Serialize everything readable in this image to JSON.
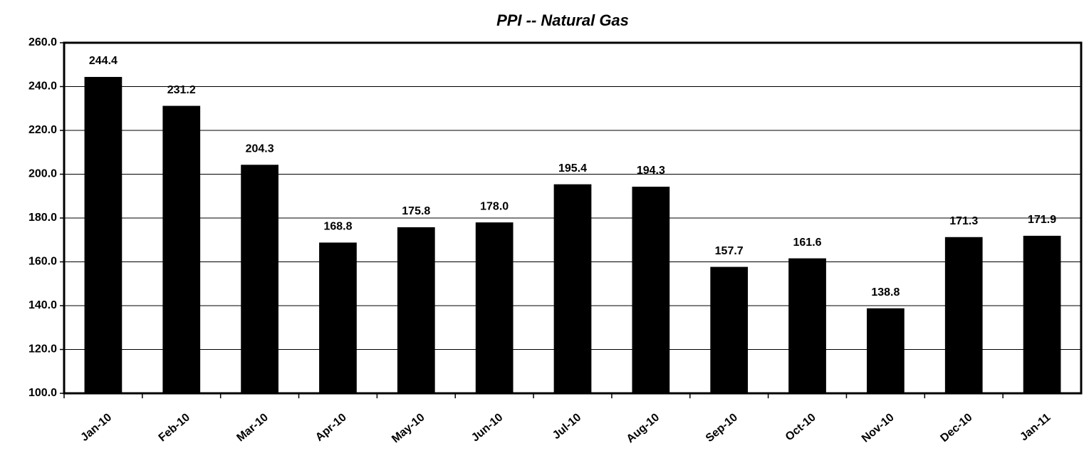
{
  "chart_data": {
    "type": "bar",
    "title": "PPI -- Natural Gas",
    "categories": [
      "Jan-10",
      "Feb-10",
      "Mar-10",
      "Apr-10",
      "May-10",
      "Jun-10",
      "Jul-10",
      "Aug-10",
      "Sep-10",
      "Oct-10",
      "Nov-10",
      "Dec-10",
      "Jan-11"
    ],
    "values": [
      244.4,
      231.2,
      204.3,
      168.8,
      175.8,
      178,
      195.4,
      194.3,
      157.7,
      161.6,
      138.8,
      171.3,
      171.9
    ],
    "value_labels": [
      "244.4",
      "231.2",
      "204.3",
      "168.8",
      "175.8",
      "178.0",
      "195.4",
      "194.3",
      "157.7",
      "161.6",
      "138.8",
      "171.3",
      "171.9"
    ],
    "color": "#000000",
    "ylim": [
      100,
      260
    ],
    "yticks": [
      {
        "value": 100,
        "label": "100.0"
      },
      {
        "value": 120,
        "label": "120.0"
      },
      {
        "value": 140,
        "label": "140.0"
      },
      {
        "value": 160,
        "label": "160.0"
      },
      {
        "value": 180,
        "label": "180.0"
      },
      {
        "value": 200,
        "label": "200.0"
      },
      {
        "value": 220,
        "label": "220.0"
      },
      {
        "value": 240,
        "label": "240.0"
      },
      {
        "value": 260,
        "label": "260.0"
      }
    ],
    "grid": true
  }
}
